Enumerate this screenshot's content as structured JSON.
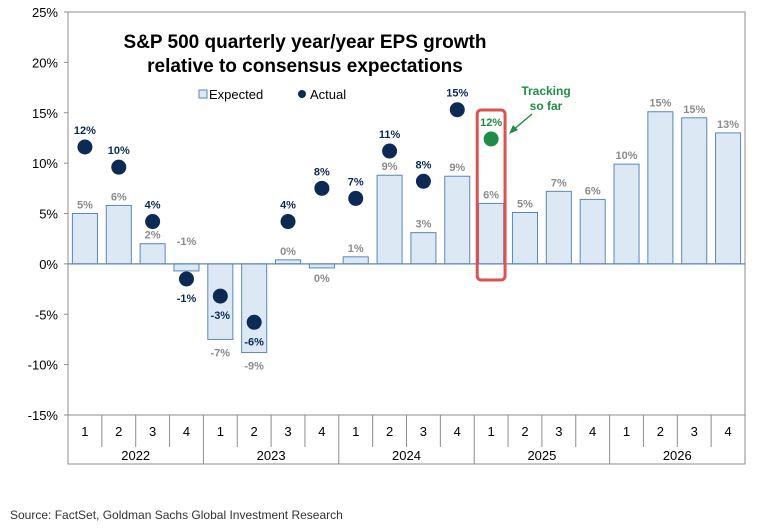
{
  "chart_data": {
    "type": "bar",
    "title_line1": "S&P 500 quarterly year/year EPS growth",
    "title_line2": "relative to consensus expectations",
    "legend": {
      "expected": "Expected",
      "actual": "Actual",
      "placement": "top-left"
    },
    "yticks": [
      "25%",
      "20%",
      "15%",
      "10%",
      "5%",
      "0%",
      "-5%",
      "-10%",
      "-15%"
    ],
    "ylim": [
      -15,
      25
    ],
    "quarters": [
      "1",
      "2",
      "3",
      "4",
      "1",
      "2",
      "3",
      "4",
      "1",
      "2",
      "3",
      "4",
      "1",
      "2",
      "3",
      "4",
      "1",
      "2",
      "3",
      "4"
    ],
    "years": [
      "2022",
      "2023",
      "2024",
      "2025",
      "2026"
    ],
    "series": [
      {
        "name": "Expected",
        "values": [
          5,
          5.8,
          2,
          -0.7,
          -7.5,
          -8.8,
          0.4,
          -0.4,
          0.7,
          8.8,
          3.1,
          8.7,
          6,
          5.1,
          7.2,
          6.4,
          9.9,
          15.1,
          14.5,
          13
        ],
        "labels": [
          "5%",
          "6%",
          "2%",
          "-1%",
          "-7%",
          "-9%",
          "0%",
          "0%",
          "1%",
          "9%",
          "3%",
          "9%",
          "6%",
          "5%",
          "7%",
          "6%",
          "10%",
          "15%",
          "15%",
          "13%"
        ]
      },
      {
        "name": "Actual",
        "values": [
          11.6,
          9.6,
          4.2,
          -1.5,
          -3.2,
          -5.8,
          4.2,
          7.5,
          6.5,
          11.2,
          8.2,
          15.3,
          12.4
        ],
        "labels": [
          "12%",
          "10%",
          "4%",
          "-1%",
          "-3%",
          "-6%",
          "4%",
          "8%",
          "7%",
          "11%",
          "8%",
          "15%",
          "12%"
        ]
      }
    ],
    "annotation": {
      "line1": "Tracking",
      "line2": "so far"
    },
    "colors": {
      "bar_fill": "#dce9f5",
      "bar_stroke": "#5b87b8",
      "actual_dot": "#0d2a54",
      "tracking_dot": "#1f8c45",
      "highlight_box": "#d9534f",
      "annotation_text": "#1f8c45",
      "expected_label": "#8c8c8c",
      "actual_label": "#0d2a54"
    }
  },
  "footer": {
    "source": "Source: FactSet, Goldman Sachs Global Investment Research"
  }
}
